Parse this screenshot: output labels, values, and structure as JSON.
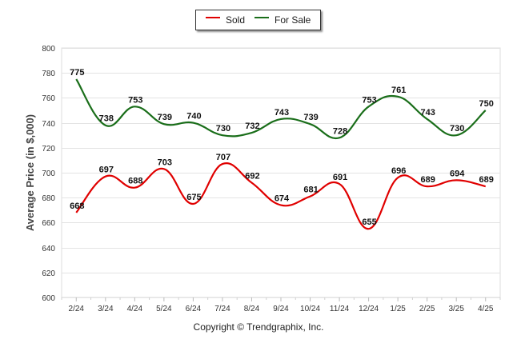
{
  "chart_data": {
    "type": "line",
    "categories": [
      "2/24",
      "3/24",
      "4/24",
      "5/24",
      "6/24",
      "7/24",
      "8/24",
      "9/24",
      "10/24",
      "11/24",
      "12/24",
      "1/25",
      "2/25",
      "3/25",
      "4/25"
    ],
    "series": [
      {
        "name": "Sold",
        "color": "#e00000",
        "values": [
          668,
          697,
          688,
          703,
          675,
          707,
          692,
          674,
          681,
          691,
          655,
          696,
          689,
          694,
          689
        ]
      },
      {
        "name": "For Sale",
        "color": "#1a6e1a",
        "values": [
          775,
          738,
          753,
          739,
          740,
          730,
          732,
          743,
          739,
          728,
          753,
          761,
          743,
          730,
          750
        ]
      }
    ],
    "ylabel": "Average Price (in $,000)",
    "xlabel": "",
    "ylim": [
      600,
      800
    ],
    "yticks": [
      600,
      620,
      640,
      660,
      680,
      700,
      720,
      740,
      760,
      780,
      800
    ],
    "grid": true,
    "legend": "top-center",
    "data_labels": true,
    "smooth": true
  },
  "copyright": "Copyright © Trendgraphix, Inc."
}
